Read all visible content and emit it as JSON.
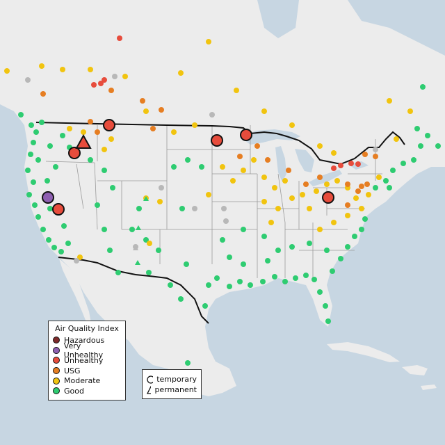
{
  "legend": {
    "title": "Air Quality Index",
    "categories": [
      {
        "label": "Hazardous",
        "color": "#7e2b2b"
      },
      {
        "label": "Very Unhealthy",
        "color": "#8e5fb1"
      },
      {
        "label": "Unhealthy",
        "color": "#e74c3c"
      },
      {
        "label": "USG",
        "color": "#e67e22"
      },
      {
        "label": "Moderate",
        "color": "#f1c40f"
      },
      {
        "label": "Good",
        "color": "#2ecc71"
      }
    ]
  },
  "type_legend": {
    "temporary": "temporary",
    "permanent": "permanent"
  },
  "colors": {
    "ocean": "#c7d6e2",
    "land": "#ececec",
    "no_data": "#b8b8b8"
  },
  "monitor_categories": [
    "Good",
    "Moderate",
    "USG",
    "Unhealthy",
    "No data"
  ]
}
